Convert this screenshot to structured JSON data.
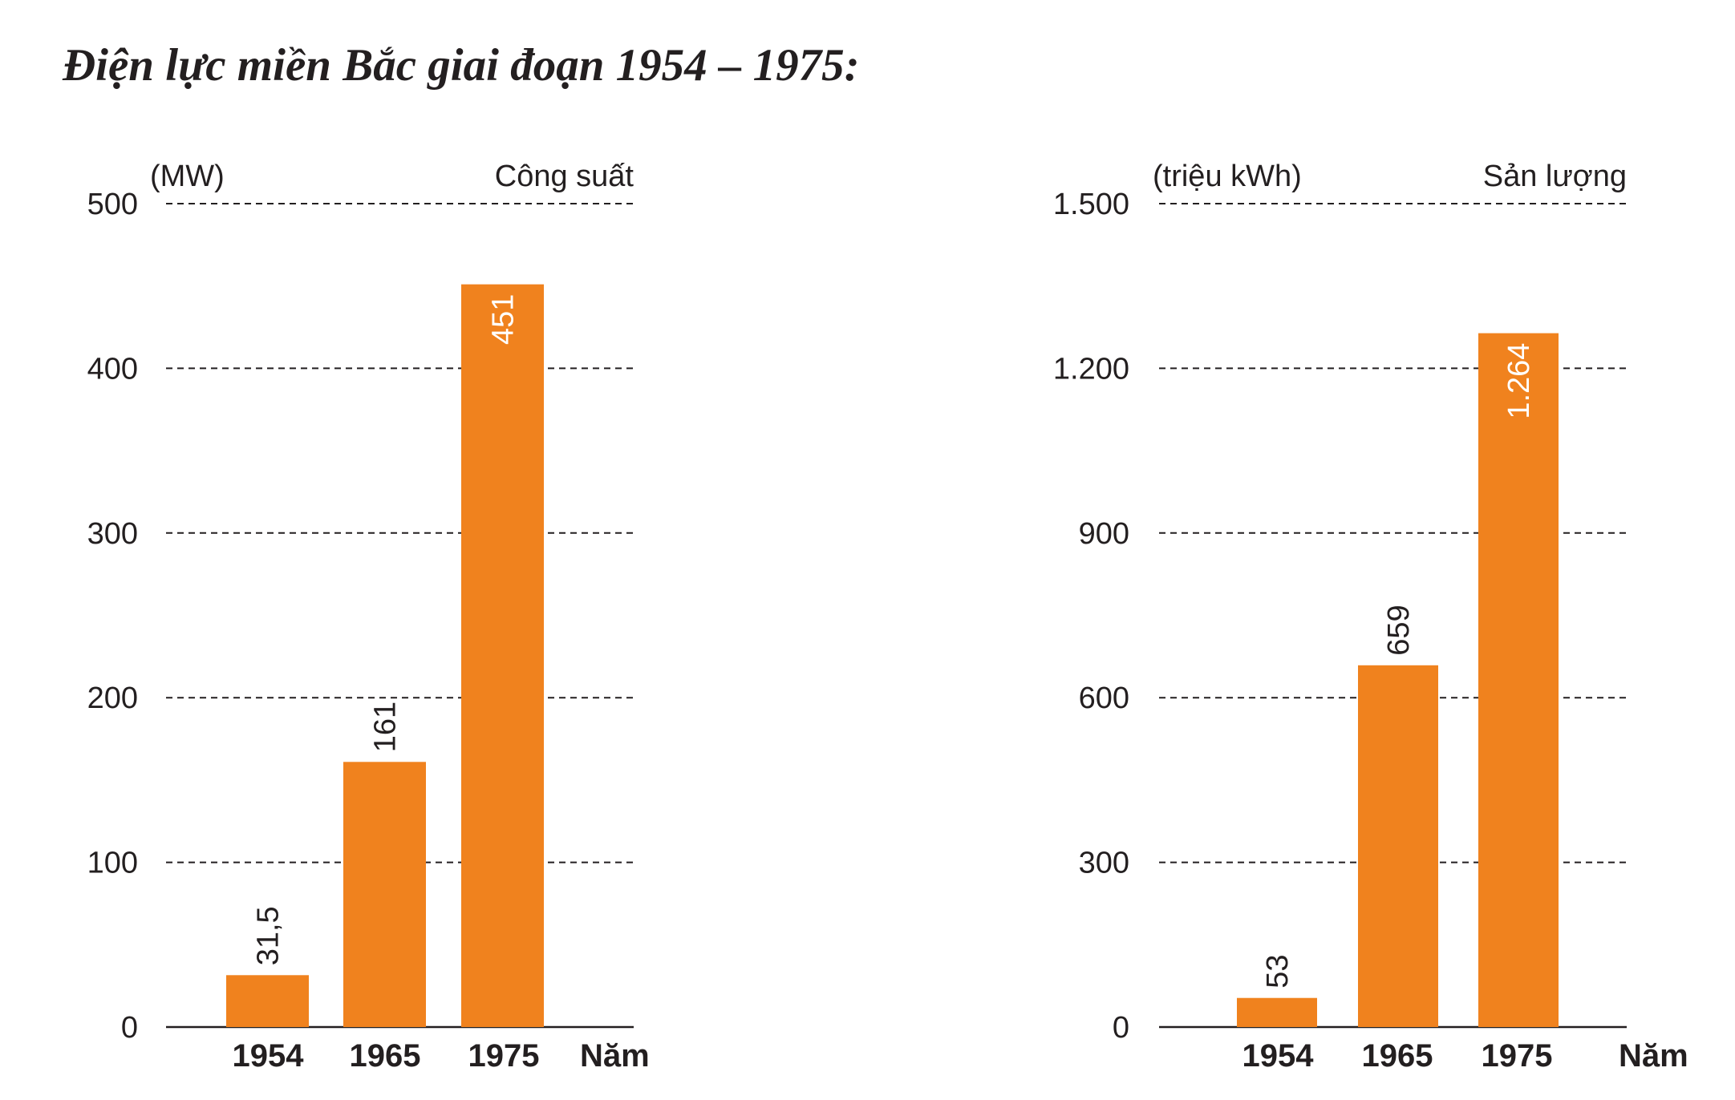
{
  "title": "Điện lực miền Bắc giai đoạn 1954 – 1975:",
  "colors": {
    "bar": "#f0821e",
    "text": "#231f20",
    "grid": "#231f20",
    "inside_label": "#ffffff"
  },
  "chart_data": [
    {
      "type": "bar",
      "title": "Công suất",
      "ylabel": "(MW)",
      "xlabel": "Năm",
      "categories": [
        "1954",
        "1965",
        "1975"
      ],
      "values": [
        31.5,
        161,
        451
      ],
      "value_labels": [
        "31,5",
        "161",
        "451"
      ],
      "label_inside": [
        false,
        false,
        true
      ],
      "ylim": [
        0,
        500
      ],
      "yticks": [
        0,
        100,
        200,
        300,
        400,
        500
      ],
      "ytick_labels": [
        "0",
        "100",
        "200",
        "300",
        "400",
        "500"
      ],
      "grid": true,
      "grid_style": "dashed"
    },
    {
      "type": "bar",
      "title": "Sản lượng",
      "ylabel": "(triệu kWh)",
      "xlabel": "Năm",
      "categories": [
        "1954",
        "1965",
        "1975"
      ],
      "values": [
        53,
        659,
        1264
      ],
      "value_labels": [
        "53",
        "659",
        "1.264"
      ],
      "label_inside": [
        false,
        false,
        true
      ],
      "ylim": [
        0,
        1500
      ],
      "yticks": [
        0,
        300,
        600,
        900,
        1200,
        1500
      ],
      "ytick_labels": [
        "0",
        "300",
        "600",
        "900",
        "1.200",
        "1.500"
      ],
      "grid": true,
      "grid_style": "dashed"
    }
  ]
}
